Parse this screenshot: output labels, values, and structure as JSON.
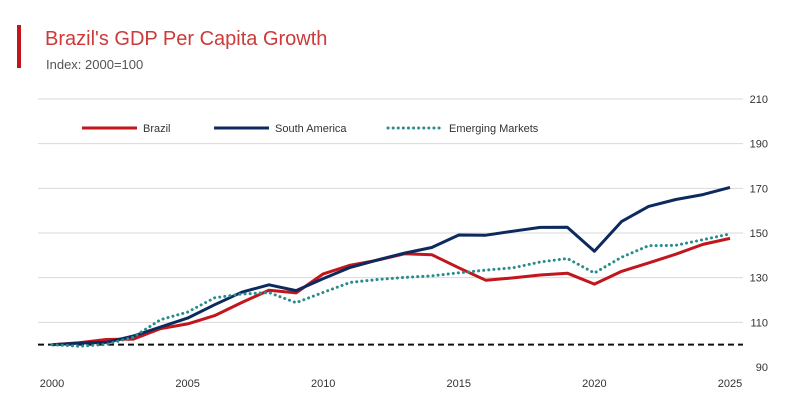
{
  "header": {
    "title": "Brazil's GDP Per Capita Growth",
    "subtitle": "Index: 2000=100"
  },
  "colors": {
    "accent": "#c0161c",
    "title": "#cc3a3a",
    "brazil": "#c0161c",
    "south_america": "#0d2a5e",
    "emerging_markets": "#2a8c8c",
    "baseline": "#111111",
    "grid": "#d9d9d9"
  },
  "chart_data": {
    "type": "line",
    "title": "Brazil's GDP Per Capita Growth",
    "subtitle": "Index: 2000=100",
    "xlabel": "",
    "ylabel": "",
    "x": [
      2000,
      2001,
      2002,
      2003,
      2004,
      2005,
      2006,
      2007,
      2008,
      2009,
      2010,
      2011,
      2012,
      2013,
      2014,
      2015,
      2016,
      2017,
      2018,
      2019,
      2020,
      2021,
      2022,
      2023,
      2024,
      2025
    ],
    "xlim": [
      2000,
      2025
    ],
    "ylim": [
      90,
      210
    ],
    "xticks": [
      2000,
      2005,
      2010,
      2015,
      2020,
      2025
    ],
    "yticks": [
      90,
      110,
      130,
      150,
      170,
      190,
      210
    ],
    "y_axis_side": "right",
    "grid": true,
    "baseline": 100,
    "legend_position": "top",
    "series": [
      {
        "name": "Brazil",
        "style": "solid",
        "color": "#c0161c",
        "values": [
          100.0,
          100.9,
          102.3,
          102.5,
          107.2,
          109.3,
          113.0,
          118.9,
          124.4,
          123.2,
          131.7,
          135.6,
          137.8,
          140.7,
          140.3,
          134.4,
          128.8,
          129.9,
          131.2,
          132.0,
          127.1,
          132.8,
          136.6,
          140.5,
          144.9,
          147.6
        ]
      },
      {
        "name": "South America",
        "style": "solid",
        "color": "#0d2a5e",
        "values": [
          100.0,
          100.7,
          101.0,
          103.9,
          107.9,
          111.9,
          117.9,
          123.5,
          126.8,
          124.2,
          129.6,
          134.6,
          137.9,
          141.0,
          143.5,
          149.1,
          149.0,
          150.8,
          152.5,
          152.6,
          141.8,
          155.1,
          161.9,
          165.0,
          167.2,
          170.4
        ]
      },
      {
        "name": "Emerging Markets",
        "style": "dotted",
        "color": "#2a8c8c",
        "values": [
          100.0,
          99.3,
          100.1,
          103.4,
          111.2,
          114.6,
          121.0,
          122.7,
          123.3,
          118.8,
          123.4,
          127.9,
          129.2,
          130.1,
          130.8,
          132.2,
          133.4,
          134.4,
          137.0,
          138.6,
          132.1,
          139.1,
          144.3,
          144.5,
          147.0,
          149.6
        ]
      }
    ]
  }
}
